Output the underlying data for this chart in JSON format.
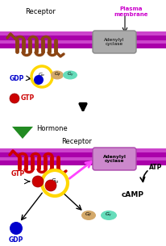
{
  "receptor_color_top": "#8B4513",
  "receptor_color_bot": "#cc0000",
  "hormone_color": "#228B22",
  "membrane_color1": "#aa00aa",
  "membrane_color2": "#cc44cc",
  "adenylyl_color_top": "#aaaaaa",
  "adenylyl_color_bot": "#cc88cc",
  "adenylyl_border_top": "#888888",
  "adenylyl_border_bot": "#aa44aa",
  "galpha_ring": "#FFD700",
  "gdp_color": "#0000cc",
  "gtp_color": "#cc0000",
  "gbeta_color": "#d4a96a",
  "ggamma_color": "#66ddbb",
  "plasma_text": "Plasma\nmembrane",
  "plasma_text_color": "#cc00cc",
  "adenylyl_text": "Adenylyl\ncyclase",
  "receptor_text": "Receptor",
  "hormone_text": "Hormone",
  "gdp_text": "GDP",
  "gtp_text": "GTP",
  "atp_text": "ATP",
  "camp_text": "cAMP",
  "arrow_big_color": "#000000",
  "magenta_arrow": "#ff44ff",
  "black": "#000000",
  "white": "#ffffff"
}
